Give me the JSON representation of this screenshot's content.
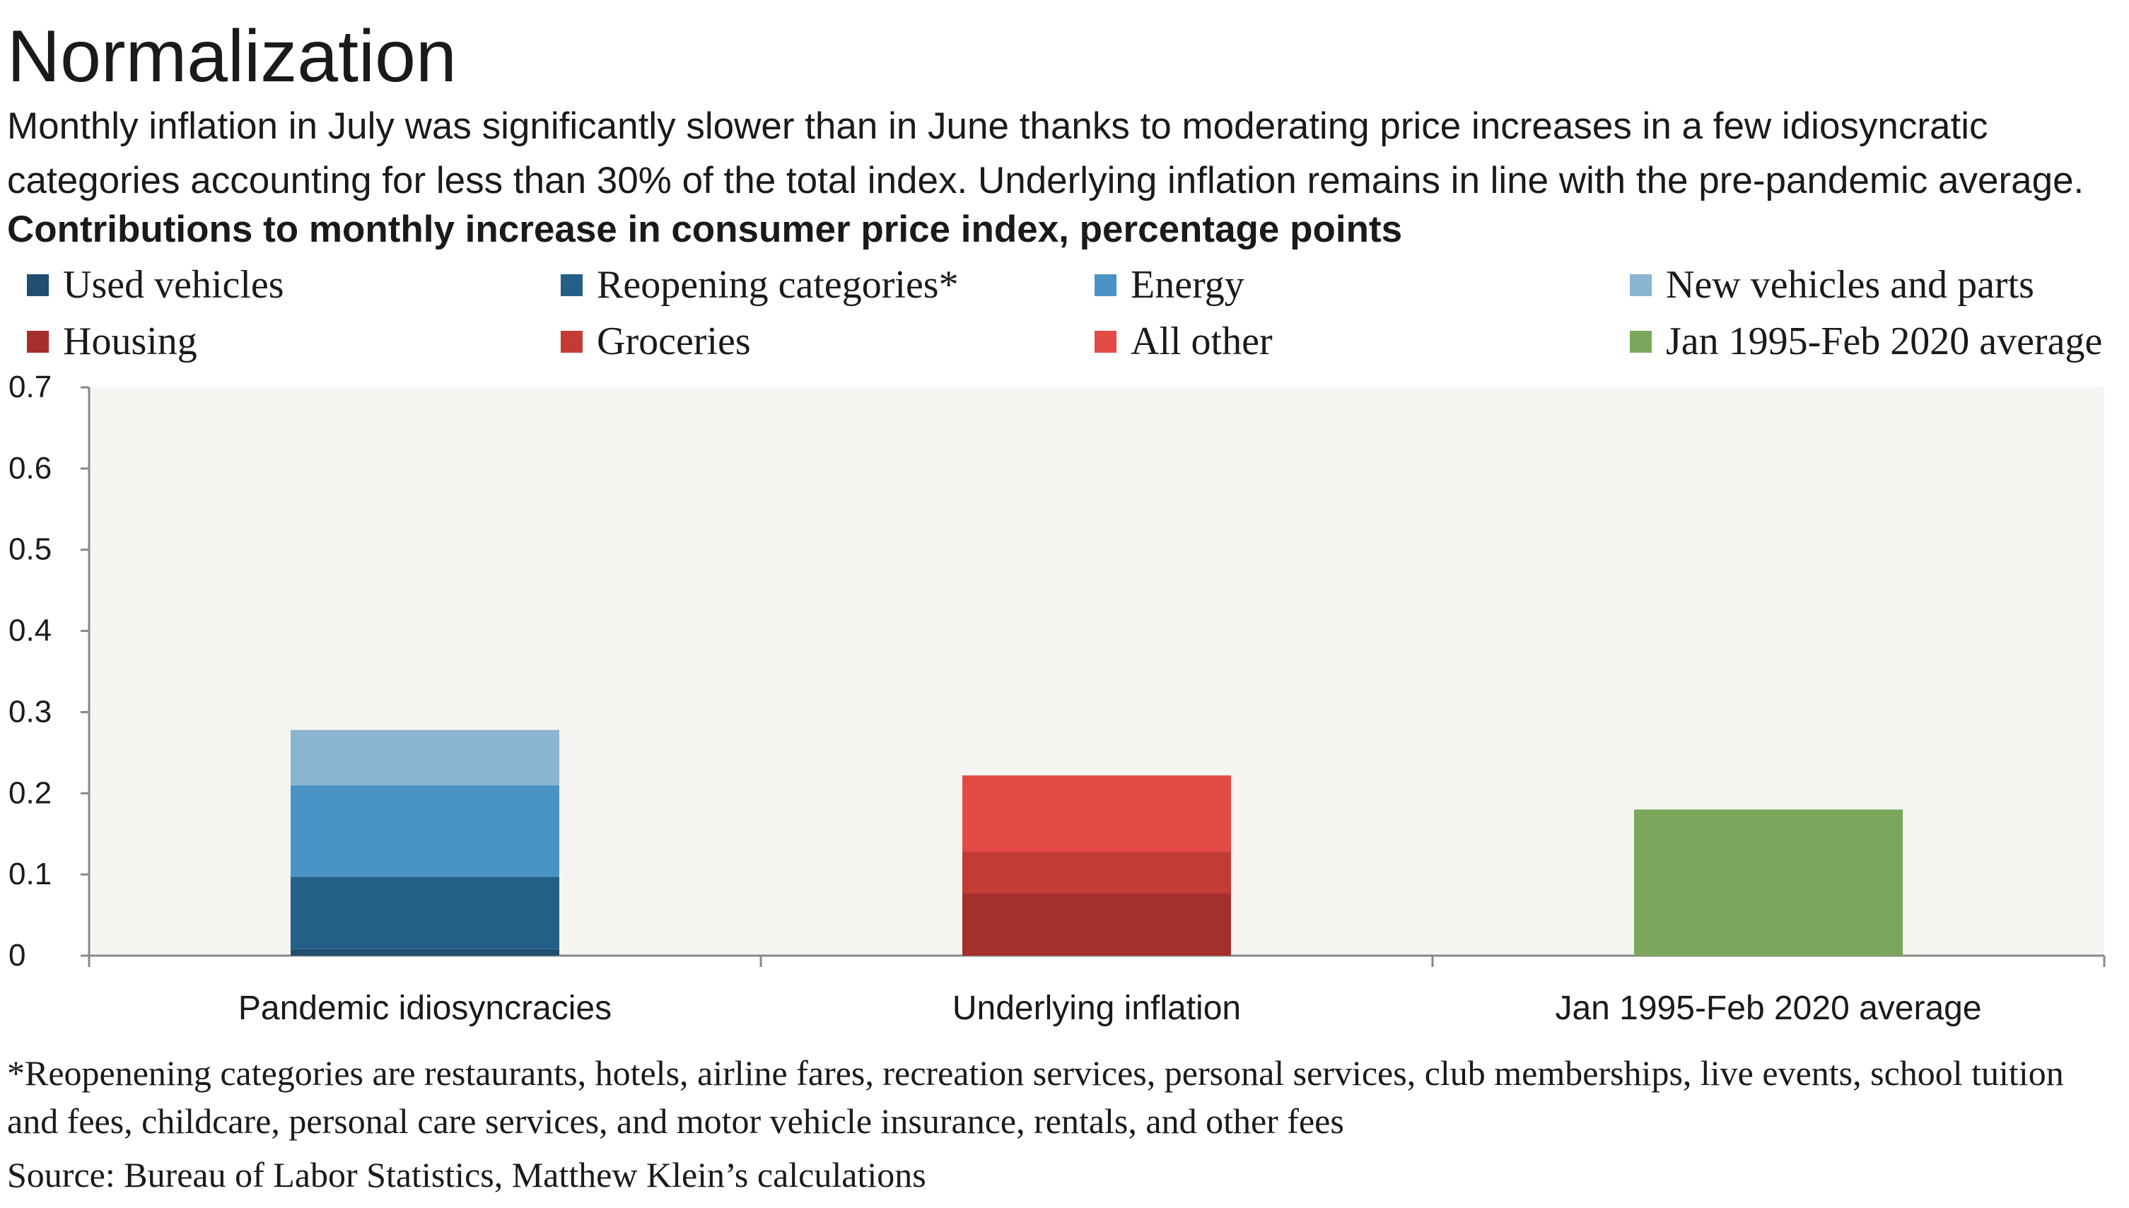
{
  "title": "Normalization",
  "subtitle": "Monthly inflation in July was significantly slower than in June thanks to moderating price increases in a few idiosyncratic categories accounting for less than 30% of the total index. Underlying inflation remains in line with the pre-pandemic average.",
  "footnote": "*Reopenening categories are restaurants, hotels, airline fares, recreation services, personal services,  club memberships, live events, school tuition and fees, childcare, personal care services, and motor vehicle insurance, rentals, and other fees",
  "source": "Source: Bureau of Labor Statistics, Matthew Klein’s calculations",
  "colors": {
    "plot_background": "#f6f5f1",
    "axis": "#888888",
    "used_vehicles": "#1f4e70",
    "reopening": "#235f87",
    "energy": "#4a93c6",
    "new_vehicles": "#8ab4cf",
    "housing": "#a52f2a",
    "groceries": "#c43b33",
    "all_other": "#e34a46",
    "average": "#7ba65c"
  },
  "chart_data": {
    "type": "bar",
    "stacked": true,
    "title": "Contributions to monthly increase in consumer price index, percentage points",
    "categories": [
      "Pandemic idiosyncracies",
      "Underlying inflation",
      "Jan 1995-Feb 2020 average"
    ],
    "ylim": [
      0,
      0.7
    ],
    "yticks": [
      "0",
      "0.1",
      "0.2",
      "0.3",
      "0.4",
      "0.5",
      "0.6",
      "0.7"
    ],
    "grid": false,
    "legend_position": "top",
    "series": [
      {
        "name": "Used vehicles",
        "color": "#1f4e70",
        "values": [
          0.008,
          0,
          0
        ]
      },
      {
        "name": "Reopening categories*",
        "color": "#235f87",
        "values": [
          0.089,
          0,
          0
        ]
      },
      {
        "name": "Energy",
        "color": "#4a93c6",
        "values": [
          0.113,
          0,
          0
        ]
      },
      {
        "name": "New vehicles and parts",
        "color": "#8ab4cf",
        "values": [
          0.068,
          0,
          0
        ]
      },
      {
        "name": "Housing",
        "color": "#a52f2a",
        "values": [
          0,
          0.077,
          0
        ]
      },
      {
        "name": "Groceries",
        "color": "#c43b33",
        "values": [
          0,
          0.051,
          0
        ]
      },
      {
        "name": "All other",
        "color": "#e34a46",
        "values": [
          0,
          0.094,
          0
        ]
      },
      {
        "name": "Jan 1995-Feb 2020 average",
        "color": "#7ba65c",
        "values": [
          0,
          0,
          0.18
        ]
      }
    ]
  }
}
